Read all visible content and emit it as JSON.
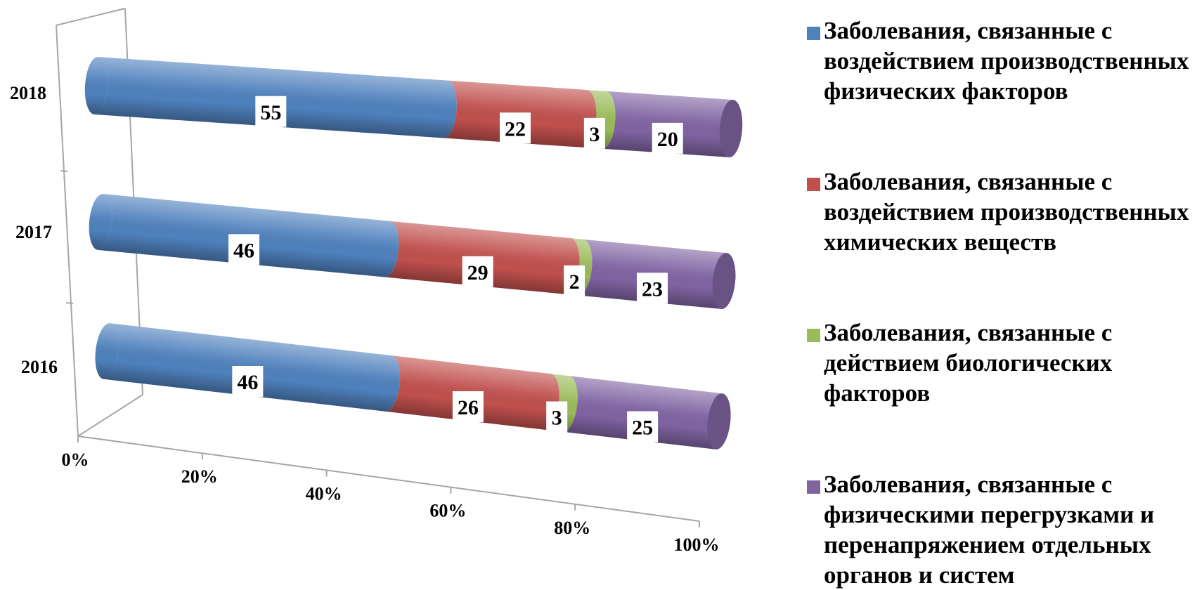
{
  "chart_data": {
    "type": "bar",
    "orientation": "horizontal",
    "stacked": "percent",
    "style": "3d-cylinder",
    "categories": [
      "2016",
      "2017",
      "2018"
    ],
    "series": [
      {
        "name": "Заболевания, связанные с воздействием производственных физических факторов",
        "values": [
          46,
          46,
          55
        ],
        "color": "#4f81bd"
      },
      {
        "name": "Заболевания, связанные с воздействием производственных химических веществ",
        "values": [
          26,
          29,
          22
        ],
        "color": "#c0504d"
      },
      {
        "name": "Заболевания, связанные с действием биологических факторов",
        "values": [
          3,
          2,
          3
        ],
        "color": "#9bbb59"
      },
      {
        "name": "Заболевания, связанные с физическими перегрузками и перенапряжением отдельных органов и систем",
        "values": [
          25,
          23,
          20
        ],
        "color": "#8064a2"
      }
    ],
    "x_ticks": [
      "0%",
      "20%",
      "40%",
      "60%",
      "80%",
      "100%"
    ],
    "xlim": [
      0,
      100
    ],
    "legend_position": "right",
    "grid": false
  }
}
